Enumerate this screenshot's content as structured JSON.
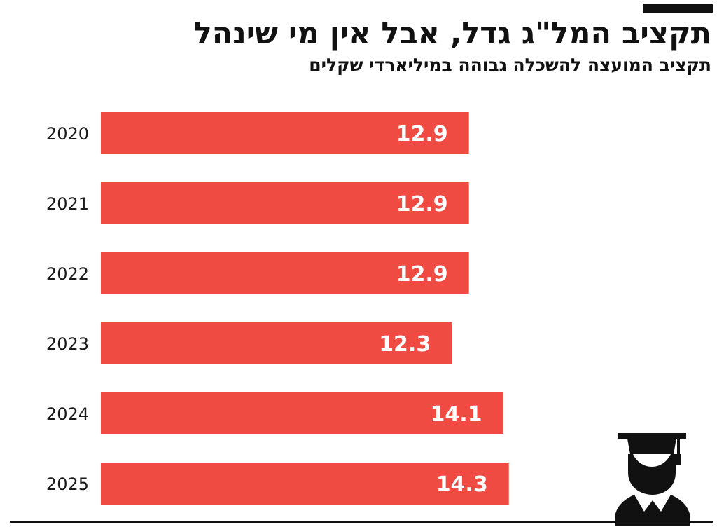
{
  "title": "תקציב המל\"ג גדל, אבל אין מי שינהל",
  "subtitle": "תקציב המועצה להשכלה גבוהה במיליארדי שקלים",
  "icon": "graduate-icon",
  "colors": {
    "bar": "#ef4b42",
    "bar_label": "#ffffff",
    "text": "#1a1a1a"
  },
  "chart_data": {
    "type": "bar",
    "orientation": "horizontal",
    "categories": [
      "2020",
      "2021",
      "2022",
      "2023",
      "2024",
      "2025"
    ],
    "values": [
      12.9,
      12.9,
      12.9,
      12.3,
      14.1,
      14.3
    ],
    "value_labels": [
      "12.9",
      "12.9",
      "12.9",
      "12.3",
      "14.1",
      "14.3"
    ],
    "xlim": [
      0,
      18
    ],
    "grid": false,
    "legend": "none"
  }
}
